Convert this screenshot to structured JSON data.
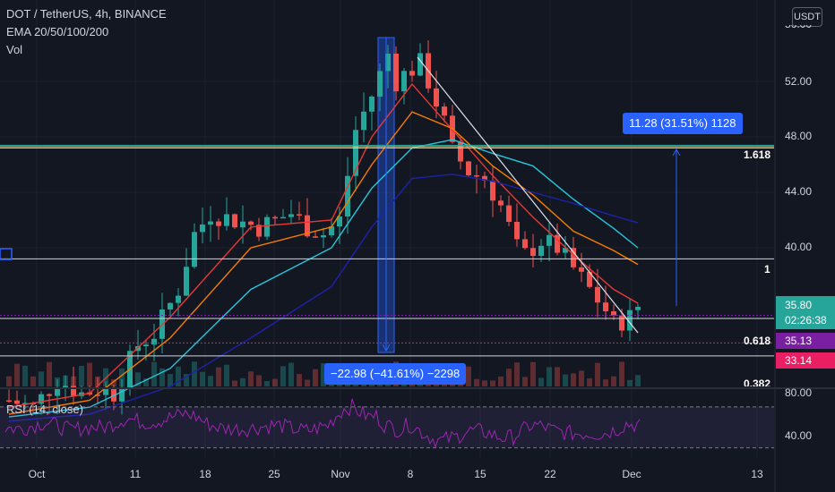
{
  "header": {
    "symbol_line": "DOT / TetherUS, 4h, BINANCE",
    "indicator_ema": "EMA 20/50/100/200",
    "indicator_vol": "Vol",
    "rsi_label": "RSI (14, close)"
  },
  "toolbar": {
    "unit": "USDT"
  },
  "colors": {
    "background": "#131722",
    "up": "#26a69a",
    "down": "#ef5350",
    "ema20": "#e53935",
    "ema50": "#f57c00",
    "ema100": "#26c6da",
    "ema200": "#1e22aa",
    "rsi": "#9c27b0",
    "measure": "#2962ff"
  },
  "chart_data": [
    {
      "type": "candlestick",
      "title": "DOT / TetherUS, 4h, BINANCE",
      "y_ticks": [
        "52.00",
        "48.00",
        "44.00",
        "40.00"
      ],
      "y_top_partial": "56.00",
      "x_ticks": [
        "Oct",
        "11",
        "18",
        "25",
        "Nov",
        "8",
        "15",
        "22",
        "Dec",
        "13"
      ],
      "ylim": [
        26,
        56
      ],
      "path": [
        [
          0,
          29.0
        ],
        [
          3,
          28.5
        ],
        [
          6,
          30.5
        ],
        [
          9,
          29.5
        ],
        [
          11,
          29.8
        ],
        [
          13,
          29.5
        ],
        [
          16,
          33.0
        ],
        [
          18,
          33.8
        ],
        [
          21,
          37.0
        ],
        [
          22,
          39.0
        ],
        [
          23,
          41.0
        ],
        [
          25,
          42.5
        ],
        [
          28,
          42.0
        ],
        [
          31,
          41.5
        ],
        [
          33,
          42.0
        ],
        [
          35,
          42.5
        ],
        [
          37,
          41.5
        ],
        [
          39,
          41.0
        ],
        [
          41,
          42.0
        ],
        [
          43,
          48.5
        ],
        [
          45,
          51.0
        ],
        [
          47,
          54.0
        ],
        [
          48,
          52.0
        ],
        [
          49,
          52.5
        ],
        [
          51,
          53.3
        ],
        [
          52,
          52.0
        ],
        [
          54,
          49.0
        ],
        [
          55,
          47.0
        ],
        [
          57,
          45.5
        ],
        [
          59,
          45.0
        ],
        [
          61,
          43.0
        ],
        [
          63,
          40.0
        ],
        [
          64,
          39.5
        ],
        [
          66,
          40.5
        ],
        [
          68,
          40.0
        ],
        [
          70,
          38.5
        ],
        [
          72,
          37.0
        ],
        [
          74,
          35.5
        ],
        [
          75,
          34.5
        ],
        [
          77,
          35.0
        ],
        [
          78,
          35.8
        ]
      ],
      "ema_series": [
        {
          "name": "EMA 20",
          "color": "#e53935",
          "points": [
            [
              0,
              28.5
            ],
            [
              10,
              29.5
            ],
            [
              20,
              35.0
            ],
            [
              30,
              41.5
            ],
            [
              40,
              42.0
            ],
            [
              45,
              48.0
            ],
            [
              50,
              51.8
            ],
            [
              55,
              48.5
            ],
            [
              60,
              45.2
            ],
            [
              65,
              42.2
            ],
            [
              70,
              39.5
            ],
            [
              75,
              37.0
            ],
            [
              78,
              36.0
            ]
          ]
        },
        {
          "name": "EMA 50",
          "color": "#f57c00",
          "points": [
            [
              0,
              28.0
            ],
            [
              10,
              29.0
            ],
            [
              20,
              33.5
            ],
            [
              30,
              40.0
            ],
            [
              40,
              41.5
            ],
            [
              45,
              46.0
            ],
            [
              50,
              49.8
            ],
            [
              55,
              48.6
            ],
            [
              60,
              45.9
            ],
            [
              65,
              43.8
            ],
            [
              70,
              41.2
            ],
            [
              75,
              39.8
            ],
            [
              78,
              38.8
            ]
          ]
        },
        {
          "name": "EMA 100",
          "color": "#26c6da",
          "points": [
            [
              0,
              27.8
            ],
            [
              10,
              28.5
            ],
            [
              20,
              31.3
            ],
            [
              30,
              37.0
            ],
            [
              40,
              40.0
            ],
            [
              45,
              44.3
            ],
            [
              50,
              47.2
            ],
            [
              55,
              47.8
            ],
            [
              60,
              46.8
            ],
            [
              65,
              45.9
            ],
            [
              70,
              43.5
            ],
            [
              75,
              41.4
            ],
            [
              78,
              40.0
            ]
          ]
        },
        {
          "name": "EMA 200",
          "color": "#1e22aa",
          "points": [
            [
              0,
              27.5
            ],
            [
              10,
              28.0
            ],
            [
              20,
              30.0
            ],
            [
              30,
              33.5
            ],
            [
              40,
              37.2
            ],
            [
              45,
              41.5
            ],
            [
              50,
              45.0
            ],
            [
              55,
              45.3
            ],
            [
              60,
              44.8
            ],
            [
              65,
              44.0
            ],
            [
              70,
              43.2
            ],
            [
              75,
              42.3
            ],
            [
              78,
              41.8
            ]
          ]
        }
      ],
      "horizontal_levels": [
        {
          "label": "1.618",
          "value": 47.2
        },
        {
          "label": "1",
          "value": 39.2
        },
        {
          "label": "0.618",
          "value": 34.9
        },
        {
          "label": "0.382",
          "value": 32.2
        }
      ],
      "measurements": [
        {
          "text": "11.28 (31.51%) 1128",
          "from": 35.8,
          "to": 47.1
        },
        {
          "text": "−22.98 (−41.61%) −2298",
          "from": 55.2,
          "to": 32.2
        }
      ],
      "price_labels": [
        {
          "text": "35.80",
          "sub": "02:26:38",
          "color": "#26a69a"
        },
        {
          "text": "35.13",
          "color": "#7b1fa2"
        },
        {
          "text": "33.14",
          "color": "#e91e63"
        }
      ]
    },
    {
      "type": "line",
      "title": "RSI (14, close)",
      "y_ticks": [
        "80.00",
        "40.00"
      ],
      "ylim": [
        20,
        90
      ],
      "bands": [
        70,
        30
      ]
    }
  ]
}
